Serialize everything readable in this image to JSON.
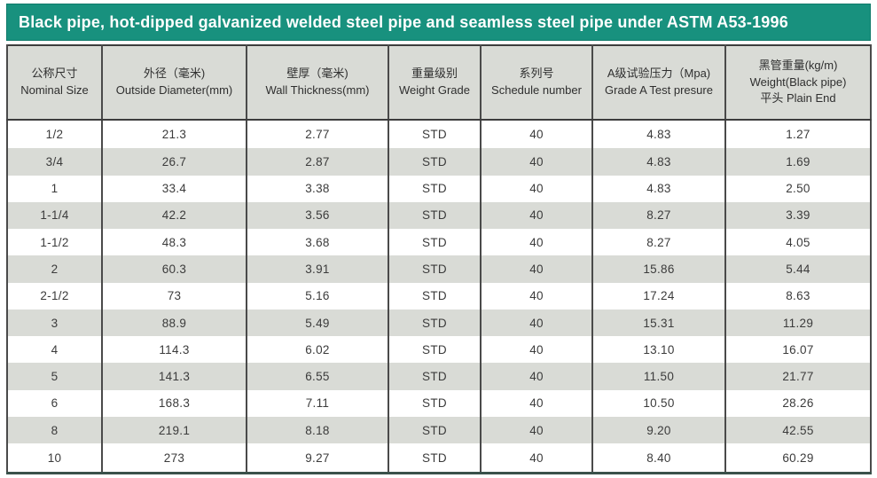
{
  "banner": {
    "title": "Black pipe, hot-dipped galvanized welded steel pipe and seamless steel pipe under ASTM A53-1996"
  },
  "table": {
    "columns": [
      {
        "zh": "公称尺寸",
        "en": "Nominal Size"
      },
      {
        "zh": "外径（毫米)",
        "en": "Outside Diameter(mm)"
      },
      {
        "zh": "壁厚（毫米)",
        "en": "Wall Thickness(mm)"
      },
      {
        "zh": "重量级别",
        "en": "Weight Grade"
      },
      {
        "zh": "系列号",
        "en": "Schedule number"
      },
      {
        "zh": "A级试验压力（Mpa)",
        "en": "Grade A Test presure"
      },
      {
        "zh": "黑管重量(kg/m)",
        "en": "Weight(Black pipe)",
        "line3": "平头 Plain End"
      }
    ],
    "rows": [
      [
        "1/2",
        "21.3",
        "2.77",
        "STD",
        "40",
        "4.83",
        "1.27"
      ],
      [
        "3/4",
        "26.7",
        "2.87",
        "STD",
        "40",
        "4.83",
        "1.69"
      ],
      [
        "1",
        "33.4",
        "3.38",
        "STD",
        "40",
        "4.83",
        "2.50"
      ],
      [
        "1-1/4",
        "42.2",
        "3.56",
        "STD",
        "40",
        "8.27",
        "3.39"
      ],
      [
        "1-1/2",
        "48.3",
        "3.68",
        "STD",
        "40",
        "8.27",
        "4.05"
      ],
      [
        "2",
        "60.3",
        "3.91",
        "STD",
        "40",
        "15.86",
        "5.44"
      ],
      [
        "2-1/2",
        "73",
        "5.16",
        "STD",
        "40",
        "17.24",
        "8.63"
      ],
      [
        "3",
        "88.9",
        "5.49",
        "STD",
        "40",
        "15.31",
        "11.29"
      ],
      [
        "4",
        "114.3",
        "6.02",
        "STD",
        "40",
        "13.10",
        "16.07"
      ],
      [
        "5",
        "141.3",
        "6.55",
        "STD",
        "40",
        "11.50",
        "21.77"
      ],
      [
        "6",
        "168.3",
        "7.11",
        "STD",
        "40",
        "10.50",
        "28.26"
      ],
      [
        "8",
        "219.1",
        "8.18",
        "STD",
        "40",
        "9.20",
        "42.55"
      ],
      [
        "10",
        "273",
        "9.27",
        "STD",
        "40",
        "8.40",
        "60.29"
      ]
    ]
  },
  "colors": {
    "banner_bg": "#18917e",
    "banner_text": "#ffffff",
    "row_alt_bg": "#d9dbd6",
    "header_bg": "#d9dbd6",
    "outer_border": "#3d3d3d",
    "grid_line": "#4a4a4a",
    "bottom_border": "#3a514b",
    "text": "#3b3b3b"
  }
}
